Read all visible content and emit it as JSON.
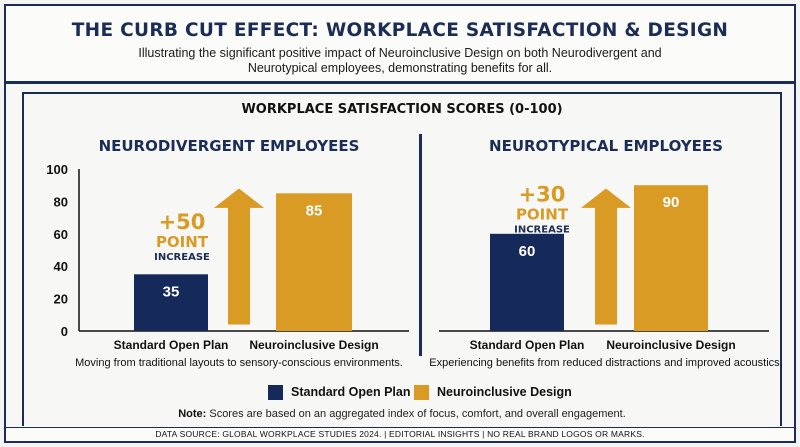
{
  "header": {
    "title": "THE CURB CUT EFFECT: WORKPLACE SATISFACTION & DESIGN",
    "subtitle": "Illustrating the significant positive impact of Neuroinclusive Design on both Neurodivergent and Neurotypical employees, demonstrating benefits for all."
  },
  "panel": {
    "title": "WORKPLACE SATISFACTION SCORES (0-100)"
  },
  "colors": {
    "standard": "#15295a",
    "neuroinclusive": "#d99b24",
    "navy": "#1b2d55"
  },
  "chart_data": [
    {
      "type": "bar",
      "title": "NEURODIVERGENT EMPLOYEES",
      "categories": [
        "Standard Open Plan",
        "Neuroinclusive Design"
      ],
      "values": [
        35,
        85
      ],
      "ylim": [
        0,
        100
      ],
      "yticks": [
        0,
        20,
        40,
        60,
        80,
        100
      ],
      "increase": {
        "number": "+50",
        "unit": "POINT",
        "label": "INCREASE"
      },
      "caption": "Moving from traditional layouts to sensory-conscious environments."
    },
    {
      "type": "bar",
      "title": "NEUROTYPICAL EMPLOYEES",
      "categories": [
        "Standard Open Plan",
        "Neuroinclusive Design"
      ],
      "values": [
        60,
        90
      ],
      "ylim": [
        0,
        100
      ],
      "increase": {
        "number": "+30",
        "unit": "POINT",
        "label": "INCREASE"
      },
      "caption": "Experiencing benefits from reduced distractions and improved acoustics."
    }
  ],
  "legend": {
    "standard_label": "Standard Open Plan",
    "neuroinclusive_label": "Neuroinclusive Design"
  },
  "note": {
    "label": "Note:",
    "text": " Scores are based on an aggregated index of focus, comfort, and overall engagement."
  },
  "footer": {
    "text": "DATA SOURCE: GLOBAL WORKPLACE STUDIES 2024.  | EDITORIAL INSIGHTS  | NO REAL BRAND LOGOS OR MARKS."
  }
}
